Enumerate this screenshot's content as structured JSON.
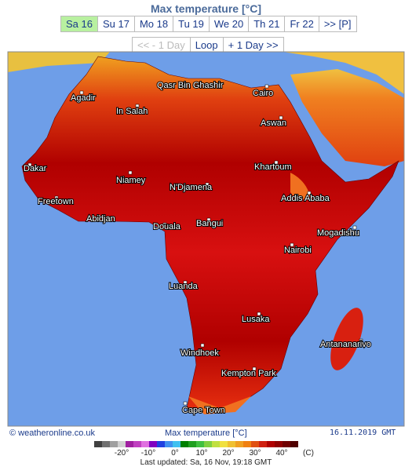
{
  "header": {
    "title": "Max temperature [°C]"
  },
  "tabs": [
    "Sa 16",
    "Su 17",
    "Mo 18",
    "Tu 19",
    "We 20",
    "Th 21",
    "Fr 22",
    ">> [P]"
  ],
  "nav": [
    "<< - 1 Day",
    "Loop",
    "+ 1 Day >>"
  ],
  "map": {
    "cities": [
      "Agadir",
      "Qasr Bin Ghashir",
      "Cairo",
      "In Salah",
      "Aswan",
      "Dakar",
      "Khartoum",
      "Niamey",
      "N'Djamena",
      "Freetown",
      "Addis Ababa",
      "Abidjan",
      "Douala",
      "Bangui",
      "Mogadishu",
      "Nairobi",
      "Luanda",
      "Lusaka",
      "Antananarivo",
      "Windhoek",
      "Kempton Park",
      "Cape Town"
    ]
  },
  "footer": {
    "credit": "© weatheronline.co.uk",
    "caption": "Max temperature [°C]",
    "date": "16.11.2019 GMT"
  },
  "legend": {
    "labels": [
      "-20°",
      "-10°",
      "0°",
      "10°",
      "20°",
      "30°",
      "40°",
      "(C)"
    ]
  },
  "updated": "Last updated: Sa, 16 Nov, 19:18 GMT"
}
